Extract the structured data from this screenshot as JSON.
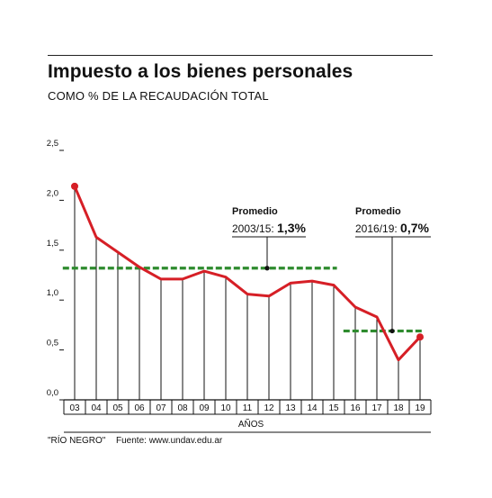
{
  "header": {
    "title": "Impuesto a los bienes personales",
    "subtitle": "COMO % DE LA RECAUDACIÓN TOTAL"
  },
  "footer": {
    "note": "\"RÍO NEGRO\"",
    "source": "Fuente: www.undav.edu.ar"
  },
  "chart_data": {
    "type": "line",
    "title": "Impuesto a los bienes personales",
    "subtitle": "COMO % DE LA RECAUDACIÓN TOTAL",
    "xlabel": "AÑOS",
    "ylabel": "",
    "categories": [
      "03",
      "04",
      "05",
      "06",
      "07",
      "08",
      "09",
      "10",
      "11",
      "12",
      "13",
      "14",
      "15",
      "16",
      "17",
      "18",
      "19"
    ],
    "series": [
      {
        "values": [
          2.14,
          1.63,
          1.48,
          1.33,
          1.21,
          1.21,
          1.29,
          1.23,
          1.06,
          1.04,
          1.17,
          1.19,
          1.15,
          0.93,
          0.83,
          0.4,
          0.63
        ]
      }
    ],
    "ylim": [
      0,
      2.5
    ],
    "yticks": [
      "0,0",
      "0,5",
      "1,0",
      "1,5",
      "2,0",
      "2,5"
    ],
    "ytick_values": [
      0,
      0.5,
      1.0,
      1.5,
      2.0,
      2.5
    ],
    "averages": [
      {
        "label": "Promedio",
        "period": "2003/15:",
        "value_text": "1,3%",
        "value": 1.32,
        "from": "03",
        "to": "15"
      },
      {
        "label": "Promedio",
        "period": "2016/19:",
        "value_text": "0,7%",
        "value": 0.69,
        "from": "16",
        "to": "19"
      }
    ],
    "colors": {
      "line": "#d61f26",
      "average": "#2e8b2e",
      "axis": "#111111"
    }
  }
}
